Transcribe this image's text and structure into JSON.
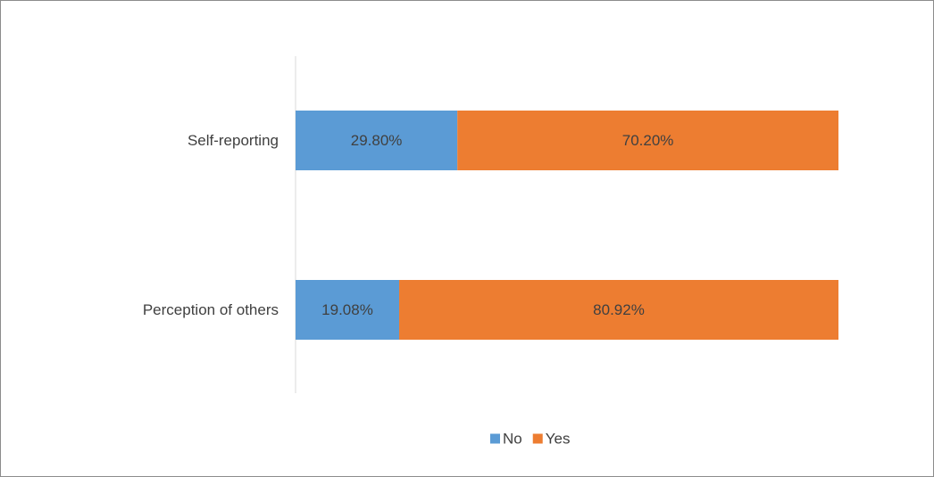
{
  "chart_data": {
    "type": "bar",
    "orientation": "horizontal",
    "stacked": "percent",
    "categories": [
      "Self-reporting",
      "Perception of others"
    ],
    "series": [
      {
        "name": "No",
        "values": [
          29.8,
          19.08
        ],
        "labels": [
          "29.80%",
          "19.08%"
        ],
        "color": "#5B9BD5"
      },
      {
        "name": "Yes",
        "values": [
          70.2,
          80.92
        ],
        "labels": [
          "70.20%",
          "80.92%"
        ],
        "color": "#ED7D31"
      }
    ],
    "xlim": [
      0,
      100
    ],
    "title": "",
    "xlabel": "",
    "ylabel": "",
    "grid": false,
    "legend_position": "bottom",
    "label_color": "#404040",
    "axis_color": "#d9d9d9"
  }
}
